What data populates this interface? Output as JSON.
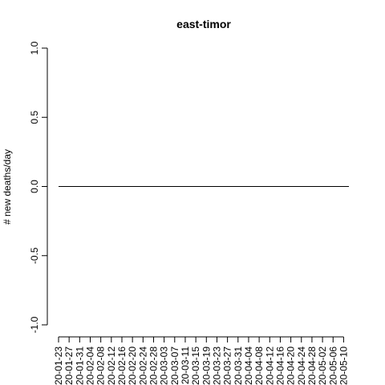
{
  "chart_data": {
    "type": "line",
    "title": "east-timor",
    "xlabel": "",
    "ylabel": "# new deaths/day",
    "ylim": [
      -1.0,
      1.0
    ],
    "y_ticks": [
      "-1.0",
      "-0.5",
      "0.0",
      "0.5",
      "1.0"
    ],
    "y_tick_values": [
      -1.0,
      -0.5,
      0.0,
      0.5,
      1.0
    ],
    "x_tick_labels": [
      "20-01-23",
      "20-01-27",
      "20-01-31",
      "20-02-04",
      "20-02-08",
      "20-02-12",
      "20-02-16",
      "20-02-20",
      "20-02-24",
      "20-02-28",
      "20-03-03",
      "20-03-07",
      "20-03-11",
      "20-03-15",
      "20-03-19",
      "20-03-23",
      "20-03-27",
      "20-03-31",
      "20-04-04",
      "20-04-08",
      "20-04-12",
      "20-04-16",
      "20-04-20",
      "20-04-24",
      "20-04-28",
      "20-05-02",
      "20-05-06",
      "20-05-10"
    ],
    "x_range": [
      "20-01-23",
      "20-05-12"
    ],
    "series": [
      {
        "x": [
          "20-01-23",
          "20-05-12"
        ],
        "values": [
          0,
          0
        ]
      }
    ],
    "grid": false,
    "legend": "none"
  }
}
